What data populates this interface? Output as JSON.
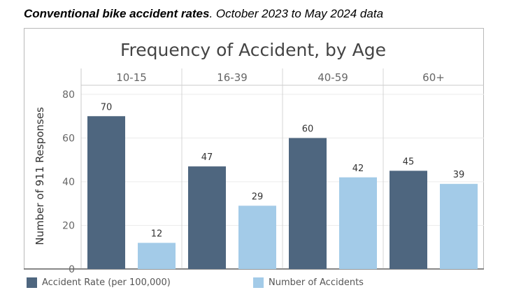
{
  "caption": {
    "bold": "Conventional bike accident rates",
    "rest": ". October 2023 to May 2024 data"
  },
  "chart_data": {
    "type": "bar",
    "title": "Frequency of Accident, by Age",
    "ylabel": "Number of 911 Responses",
    "xlabel": "",
    "ylim": [
      0,
      80
    ],
    "yticks": [
      0,
      20,
      40,
      60,
      80
    ],
    "categories": [
      "10-15",
      "16-39",
      "40-59",
      "60+"
    ],
    "series": [
      {
        "name": "Accident Rate (per 100,000)",
        "color": "#4e667f",
        "values": [
          70,
          47,
          60,
          45
        ]
      },
      {
        "name": "Number of Accidents",
        "color": "#a3cbe8",
        "values": [
          12,
          29,
          42,
          39
        ]
      }
    ],
    "legend_position": "bottom"
  }
}
